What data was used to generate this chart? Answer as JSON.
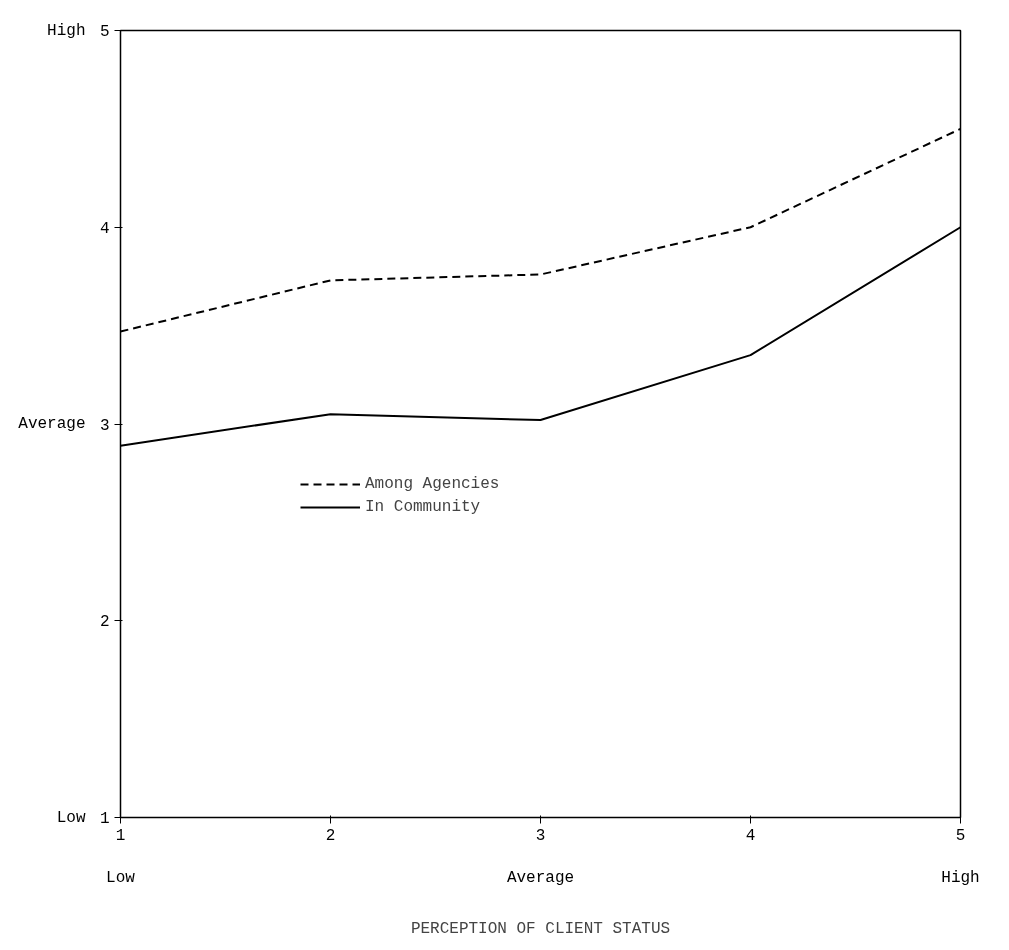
{
  "chart_data": {
    "type": "line",
    "xlabel": "PERCEPTION OF CLIENT STATUS",
    "x": [
      1,
      2,
      3,
      4,
      5
    ],
    "series": [
      {
        "name": "Among Agencies",
        "color": "#000000",
        "line_style": "dashed",
        "values": [
          3.47,
          3.73,
          3.76,
          4.0,
          4.5
        ]
      },
      {
        "name": "In Community",
        "color": "#000000",
        "line_style": "solid",
        "values": [
          2.89,
          3.05,
          3.02,
          3.35,
          4.0
        ]
      }
    ],
    "xlim": [
      1,
      5
    ],
    "xticks": [
      1,
      2,
      3,
      4,
      5
    ],
    "ylim": [
      1,
      5
    ],
    "yticks": [
      1,
      2,
      3,
      4,
      5
    ],
    "annotations": [
      "High",
      "Average",
      "Low",
      "Low",
      "Average",
      "High"
    ],
    "grid": false,
    "legend": "center",
    "marker": "none"
  }
}
